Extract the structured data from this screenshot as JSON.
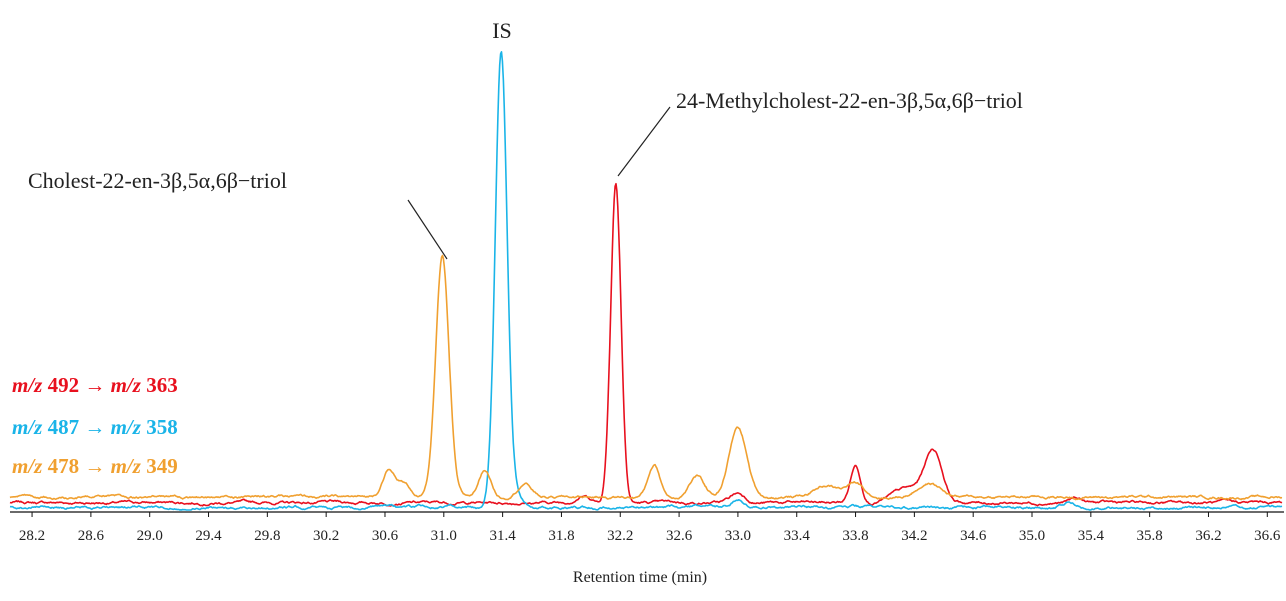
{
  "chart_data": {
    "type": "line",
    "title": "",
    "xlabel": "Retention time (min)",
    "ylabel": "",
    "xlim": [
      28.05,
      36.7
    ],
    "ylim": [
      0,
      100
    ],
    "grid": false,
    "legend_position": "left",
    "x_ticks": [
      28.2,
      28.6,
      29.0,
      29.4,
      29.8,
      30.2,
      30.6,
      31.0,
      31.4,
      31.8,
      32.2,
      32.6,
      33.0,
      33.4,
      33.8,
      34.2,
      34.6,
      35.0,
      35.4,
      35.8,
      36.2,
      36.6
    ],
    "x_tick_labels": [
      "28.2",
      "28.6",
      "29.0",
      "29.4",
      "29.8",
      "30.2",
      "30.6",
      "31.0",
      "31.4",
      "31.8",
      "32.2",
      "32.6",
      "33.0",
      "33.4",
      "33.8",
      "34.2",
      "34.6",
      "35.0",
      "35.4",
      "35.8",
      "36.2",
      "36.6"
    ],
    "series": [
      {
        "name": "m/z 492 → m/z 363",
        "color": "#e8101e",
        "baseline": 1.6,
        "peaks": [
          [
            32.17,
            69.5,
            0.035
          ],
          [
            33.8,
            8.0,
            0.035
          ],
          [
            34.33,
            11.0,
            0.06
          ],
          [
            34.15,
            3.0,
            0.1
          ],
          [
            33.0,
            2.0,
            0.05
          ],
          [
            31.95,
            1.5,
            0.05
          ],
          [
            35.3,
            1.0,
            0.04
          ]
        ]
      },
      {
        "name": "m/z 487 → m/z 358",
        "color": "#1ab4e8",
        "baseline": 0.6,
        "peaks": [
          [
            31.39,
            98.0,
            0.04
          ],
          [
            31.48,
            3.0,
            0.05
          ],
          [
            33.0,
            1.5,
            0.04
          ],
          [
            35.25,
            1.2,
            0.04
          ]
        ]
      },
      {
        "name": "m/z 478 → m/z 349",
        "color": "#f0a030",
        "baseline": 2.8,
        "peaks": [
          [
            30.99,
            52.0,
            0.045
          ],
          [
            30.62,
            5.5,
            0.04
          ],
          [
            30.72,
            3.0,
            0.05
          ],
          [
            31.28,
            6.0,
            0.04
          ],
          [
            31.55,
            3.0,
            0.05
          ],
          [
            32.43,
            7.0,
            0.04
          ],
          [
            32.72,
            4.5,
            0.05
          ],
          [
            33.0,
            15.0,
            0.06
          ],
          [
            33.6,
            2.5,
            0.08
          ],
          [
            33.8,
            3.0,
            0.06
          ],
          [
            34.3,
            3.0,
            0.08
          ]
        ]
      }
    ],
    "annotations": [
      {
        "text": "IS",
        "target_x": 31.39
      },
      {
        "text": "24-Methylcholest-22-en-3β,5α,6β−triol",
        "target_x": 32.17
      },
      {
        "text": "Cholest-22-en-3β,5α,6β−triol",
        "target_x": 30.99
      }
    ],
    "legend": [
      {
        "color": "#e8101e",
        "mz1_label": "m/z",
        "mz1_value": "492",
        "arrow": "→",
        "mz2_label": "m/z",
        "mz2_value": "363"
      },
      {
        "color": "#1ab4e8",
        "mz1_label": "m/z",
        "mz1_value": "487",
        "arrow": "→",
        "mz2_label": "m/z",
        "mz2_value": "358"
      },
      {
        "color": "#f0a030",
        "mz1_label": "m/z",
        "mz1_value": "478",
        "arrow": "→",
        "mz2_label": "m/z",
        "mz2_value": "349"
      }
    ]
  }
}
